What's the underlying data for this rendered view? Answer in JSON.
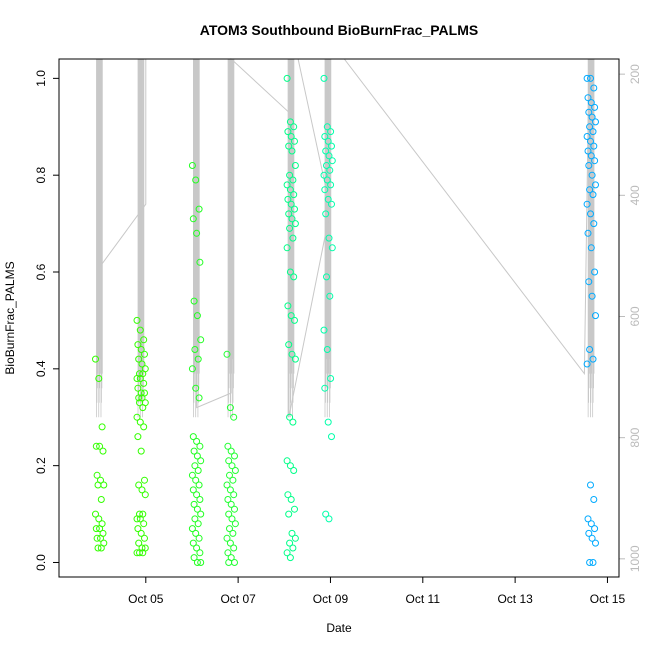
{
  "chart_data": {
    "type": "scatter",
    "title": "ATOM3 Southbound BioBurnFrac_PALMS",
    "xlabel": "Date",
    "ylabel": "BioBurnFrac_PALMS",
    "y_ticks": [
      "0.0",
      "0.2",
      "0.4",
      "0.6",
      "0.8",
      "1.0"
    ],
    "y_tick_values": [
      0,
      0.2,
      0.4,
      0.6,
      0.8,
      1.0
    ],
    "ylim": [
      -0.03,
      1.04
    ],
    "x_ticks": [
      "Oct 05",
      "Oct 07",
      "Oct 09",
      "Oct 11",
      "Oct 13",
      "Oct 15"
    ],
    "x_tick_values": [
      5,
      7,
      9,
      11,
      13,
      15
    ],
    "xlim": [
      3.12,
      15.25
    ],
    "y2_ticks": [
      "200",
      "400",
      "600",
      "800",
      "1000"
    ],
    "y2_tick_values": [
      200,
      400,
      600,
      800,
      1000
    ],
    "y2lim": [
      1030,
      175
    ],
    "y2_reversed": true,
    "grid": false,
    "marker": "open-circle",
    "colors": {
      "secondary_axis": "#bbbbbb",
      "line": "#c8c8c8",
      "axis": "#000000"
    },
    "groups": [
      {
        "date": 4.0,
        "color": "#33ff00",
        "values": [
          0.42,
          0.38,
          0.28,
          0.24,
          0.24,
          0.23,
          0.18,
          0.17,
          0.16,
          0.16,
          0.13,
          0.1,
          0.09,
          0.08,
          0.07,
          0.07,
          0.06,
          0.05,
          0.05,
          0.04,
          0.03,
          0.03
        ]
      },
      {
        "date": 4.9,
        "color": "#33ff00",
        "values": [
          0.5,
          0.48,
          0.46,
          0.45,
          0.44,
          0.43,
          0.42,
          0.41,
          0.4,
          0.39,
          0.39,
          0.38,
          0.38,
          0.37,
          0.36,
          0.35,
          0.35,
          0.34,
          0.34,
          0.33,
          0.33,
          0.32,
          0.3,
          0.29,
          0.28,
          0.26,
          0.23,
          0.17,
          0.16,
          0.15,
          0.14,
          0.1,
          0.1,
          0.09,
          0.09,
          0.08,
          0.07,
          0.06,
          0.05,
          0.04,
          0.03,
          0.03,
          0.02,
          0.02,
          0.02
        ]
      },
      {
        "date": 6.1,
        "color": "#22ff22",
        "values": [
          0.82,
          0.79,
          0.73,
          0.71,
          0.68,
          0.62,
          0.54,
          0.51,
          0.46,
          0.44,
          0.42,
          0.4,
          0.36,
          0.34,
          0.26,
          0.25,
          0.24,
          0.23,
          0.22,
          0.21,
          0.2,
          0.19,
          0.18,
          0.17,
          0.16,
          0.15,
          0.14,
          0.13,
          0.12,
          0.11,
          0.1,
          0.09,
          0.08,
          0.07,
          0.06,
          0.05,
          0.04,
          0.03,
          0.02,
          0.01,
          0.0,
          0.0
        ]
      },
      {
        "date": 6.85,
        "color": "#22ff33",
        "values": [
          0.43,
          0.32,
          0.3,
          0.24,
          0.23,
          0.22,
          0.21,
          0.2,
          0.19,
          0.18,
          0.17,
          0.16,
          0.15,
          0.14,
          0.13,
          0.12,
          0.11,
          0.1,
          0.09,
          0.08,
          0.07,
          0.06,
          0.05,
          0.04,
          0.03,
          0.02,
          0.01,
          0.0,
          0.0
        ]
      },
      {
        "date": 8.15,
        "color": "#00ff88",
        "values": [
          1.0,
          0.91,
          0.9,
          0.89,
          0.88,
          0.87,
          0.86,
          0.85,
          0.82,
          0.8,
          0.79,
          0.78,
          0.77,
          0.76,
          0.75,
          0.74,
          0.73,
          0.72,
          0.71,
          0.7,
          0.69,
          0.67,
          0.65,
          0.6,
          0.59,
          0.53,
          0.51,
          0.5,
          0.45,
          0.43,
          0.42,
          0.3,
          0.29,
          0.21,
          0.2,
          0.19,
          0.14,
          0.13,
          0.11,
          0.1,
          0.06,
          0.05,
          0.04,
          0.03,
          0.02,
          0.01
        ]
      },
      {
        "date": 8.95,
        "color": "#00ffaa",
        "values": [
          1.0,
          0.9,
          0.89,
          0.88,
          0.87,
          0.86,
          0.85,
          0.84,
          0.83,
          0.82,
          0.81,
          0.8,
          0.79,
          0.78,
          0.77,
          0.75,
          0.74,
          0.72,
          0.67,
          0.65,
          0.59,
          0.55,
          0.48,
          0.44,
          0.38,
          0.36,
          0.29,
          0.26,
          0.1,
          0.09
        ]
      },
      {
        "date": 14.65,
        "color": "#00aaff",
        "values": [
          1.0,
          1.0,
          0.98,
          0.96,
          0.95,
          0.94,
          0.93,
          0.92,
          0.91,
          0.9,
          0.89,
          0.88,
          0.87,
          0.86,
          0.85,
          0.84,
          0.83,
          0.82,
          0.8,
          0.78,
          0.77,
          0.76,
          0.74,
          0.72,
          0.7,
          0.68,
          0.65,
          0.6,
          0.58,
          0.55,
          0.51,
          0.44,
          0.42,
          0.41,
          0.16,
          0.13,
          0.09,
          0.08,
          0.07,
          0.06,
          0.05,
          0.04,
          0.0,
          0.0
        ]
      }
    ]
  }
}
